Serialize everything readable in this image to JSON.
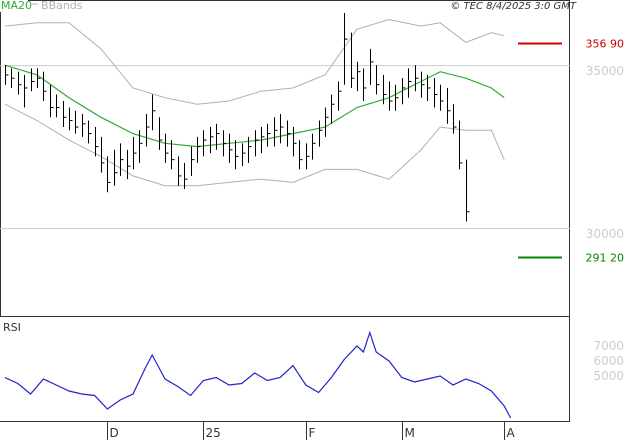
{
  "header": {
    "legend_ma": "MA20",
    "legend_bb": "BBands",
    "source": "© TEC 8/4/2025 3:0 GMT"
  },
  "colors": {
    "ma": "#33aa33",
    "bands": "#b0b0b0",
    "price": "#000000",
    "rsi": "#2222cc",
    "marker_high": "#cc0000",
    "marker_low": "#008800",
    "grid": "#cccccc",
    "axis": "#333333"
  },
  "chart_data": [
    {
      "type": "ohlc",
      "title": "",
      "ylim": [
        273,
        370
      ],
      "y_ticks": [
        {
          "value": 350,
          "label": "35000"
        },
        {
          "value": 300,
          "label": "30000"
        }
      ],
      "gridlines_y": [
        350,
        300
      ],
      "markers": [
        {
          "name": "high",
          "value": 356.9,
          "label": "356 90"
        },
        {
          "name": "low",
          "value": 291.2,
          "label": "291 20"
        }
      ],
      "x_ticks": [
        {
          "index": 16,
          "label": "D"
        },
        {
          "index": 31,
          "label": "25"
        },
        {
          "index": 47,
          "label": "F"
        },
        {
          "index": 62,
          "label": "M"
        },
        {
          "index": 78,
          "label": "A"
        }
      ],
      "bars": [
        {
          "h": 350,
          "l": 344,
          "c": 347
        },
        {
          "h": 349,
          "l": 343,
          "c": 346
        },
        {
          "h": 348,
          "l": 341,
          "c": 344
        },
        {
          "h": 347,
          "l": 337,
          "c": 343
        },
        {
          "h": 349,
          "l": 342,
          "c": 345
        },
        {
          "h": 349,
          "l": 343,
          "c": 346
        },
        {
          "h": 348,
          "l": 339,
          "c": 342
        },
        {
          "h": 344,
          "l": 334,
          "c": 337
        },
        {
          "h": 341,
          "l": 334,
          "c": 337
        },
        {
          "h": 339,
          "l": 331,
          "c": 334
        },
        {
          "h": 337,
          "l": 330,
          "c": 333
        },
        {
          "h": 336,
          "l": 329,
          "c": 331
        },
        {
          "h": 335,
          "l": 328,
          "c": 332
        },
        {
          "h": 333,
          "l": 326,
          "c": 329
        },
        {
          "h": 331,
          "l": 322,
          "c": 325
        },
        {
          "h": 328,
          "l": 317,
          "c": 320
        },
        {
          "h": 322,
          "l": 311,
          "c": 314
        },
        {
          "h": 324,
          "l": 313,
          "c": 317
        },
        {
          "h": 326,
          "l": 316,
          "c": 321
        },
        {
          "h": 324,
          "l": 315,
          "c": 319
        },
        {
          "h": 328,
          "l": 318,
          "c": 323
        },
        {
          "h": 330,
          "l": 320,
          "c": 326
        },
        {
          "h": 335,
          "l": 325,
          "c": 331
        },
        {
          "h": 341,
          "l": 330,
          "c": 336
        },
        {
          "h": 334,
          "l": 324,
          "c": 327
        },
        {
          "h": 329,
          "l": 320,
          "c": 323
        },
        {
          "h": 327,
          "l": 318,
          "c": 321
        },
        {
          "h": 322,
          "l": 313,
          "c": 316
        },
        {
          "h": 320,
          "l": 312,
          "c": 315
        },
        {
          "h": 325,
          "l": 316,
          "c": 321
        },
        {
          "h": 328,
          "l": 320,
          "c": 325
        },
        {
          "h": 330,
          "l": 322,
          "c": 327
        },
        {
          "h": 331,
          "l": 323,
          "c": 328
        },
        {
          "h": 332,
          "l": 324,
          "c": 329
        },
        {
          "h": 330,
          "l": 322,
          "c": 326
        },
        {
          "h": 329,
          "l": 320,
          "c": 324
        },
        {
          "h": 327,
          "l": 318,
          "c": 322
        },
        {
          "h": 326,
          "l": 319,
          "c": 323
        },
        {
          "h": 328,
          "l": 320,
          "c": 325
        },
        {
          "h": 330,
          "l": 322,
          "c": 327
        },
        {
          "h": 331,
          "l": 323,
          "c": 328
        },
        {
          "h": 332,
          "l": 325,
          "c": 329
        },
        {
          "h": 334,
          "l": 325,
          "c": 330
        },
        {
          "h": 335,
          "l": 326,
          "c": 331
        },
        {
          "h": 333,
          "l": 325,
          "c": 329
        },
        {
          "h": 331,
          "l": 322,
          "c": 326
        },
        {
          "h": 327,
          "l": 318,
          "c": 321
        },
        {
          "h": 326,
          "l": 318,
          "c": 322
        },
        {
          "h": 329,
          "l": 321,
          "c": 326
        },
        {
          "h": 333,
          "l": 325,
          "c": 330
        },
        {
          "h": 337,
          "l": 328,
          "c": 334
        },
        {
          "h": 341,
          "l": 332,
          "c": 338
        },
        {
          "h": 345,
          "l": 336,
          "c": 342
        },
        {
          "h": 366,
          "l": 344,
          "c": 358
        },
        {
          "h": 360,
          "l": 343,
          "c": 346
        },
        {
          "h": 351,
          "l": 342,
          "c": 348
        },
        {
          "h": 349,
          "l": 339,
          "c": 343
        },
        {
          "h": 355,
          "l": 344,
          "c": 351
        },
        {
          "h": 350,
          "l": 341,
          "c": 344
        },
        {
          "h": 347,
          "l": 338,
          "c": 341
        },
        {
          "h": 345,
          "l": 336,
          "c": 339
        },
        {
          "h": 344,
          "l": 336,
          "c": 340
        },
        {
          "h": 346,
          "l": 338,
          "c": 343
        },
        {
          "h": 349,
          "l": 340,
          "c": 345
        },
        {
          "h": 350,
          "l": 342,
          "c": 346
        },
        {
          "h": 348,
          "l": 340,
          "c": 344
        },
        {
          "h": 347,
          "l": 339,
          "c": 343
        },
        {
          "h": 346,
          "l": 337,
          "c": 341
        },
        {
          "h": 344,
          "l": 336,
          "c": 339
        },
        {
          "h": 343,
          "l": 332,
          "c": 336
        },
        {
          "h": 338,
          "l": 329,
          "c": 331
        },
        {
          "h": 333,
          "l": 318,
          "c": 320
        },
        {
          "h": 321,
          "l": 302,
          "c": 305
        }
      ],
      "ma20": [
        [
          0,
          350
        ],
        [
          5,
          347
        ],
        [
          10,
          340
        ],
        [
          15,
          334
        ],
        [
          20,
          329
        ],
        [
          25,
          326
        ],
        [
          30,
          325
        ],
        [
          35,
          326
        ],
        [
          40,
          327
        ],
        [
          45,
          329
        ],
        [
          50,
          331
        ],
        [
          55,
          337
        ],
        [
          60,
          340
        ],
        [
          65,
          345
        ],
        [
          68,
          348
        ],
        [
          72,
          346
        ],
        [
          76,
          343
        ],
        [
          78,
          340
        ]
      ],
      "bb_upper": [
        [
          0,
          362
        ],
        [
          5,
          363
        ],
        [
          10,
          363
        ],
        [
          15,
          355
        ],
        [
          20,
          343
        ],
        [
          25,
          340
        ],
        [
          30,
          338
        ],
        [
          35,
          339
        ],
        [
          40,
          342
        ],
        [
          45,
          343
        ],
        [
          50,
          347
        ],
        [
          55,
          361
        ],
        [
          60,
          364
        ],
        [
          65,
          362
        ],
        [
          68,
          363
        ],
        [
          72,
          357
        ],
        [
          76,
          360
        ],
        [
          78,
          359
        ]
      ],
      "bb_lower": [
        [
          0,
          338
        ],
        [
          5,
          333
        ],
        [
          10,
          327
        ],
        [
          15,
          322
        ],
        [
          20,
          316
        ],
        [
          25,
          313
        ],
        [
          30,
          313
        ],
        [
          35,
          314
        ],
        [
          40,
          315
        ],
        [
          45,
          314
        ],
        [
          50,
          318
        ],
        [
          55,
          318
        ],
        [
          60,
          315
        ],
        [
          65,
          324
        ],
        [
          68,
          331
        ],
        [
          72,
          330
        ],
        [
          76,
          330
        ],
        [
          78,
          321
        ]
      ]
    },
    {
      "type": "line",
      "title": "RSI",
      "ylim": [
        20,
        90
      ],
      "y_ticks": [
        {
          "value": 70,
          "label": "7000"
        },
        {
          "value": 60,
          "label": "6000"
        },
        {
          "value": 50,
          "label": "5000"
        }
      ],
      "series": [
        {
          "values": [
            [
              0,
              49
            ],
            [
              2,
              45
            ],
            [
              4,
              38
            ],
            [
              6,
              48
            ],
            [
              8,
              44
            ],
            [
              10,
              40
            ],
            [
              12,
              38
            ],
            [
              14,
              37
            ],
            [
              16,
              28
            ],
            [
              18,
              34
            ],
            [
              20,
              38
            ],
            [
              22,
              56
            ],
            [
              23,
              64
            ],
            [
              25,
              48
            ],
            [
              27,
              43
            ],
            [
              29,
              37
            ],
            [
              31,
              47
            ],
            [
              33,
              49
            ],
            [
              35,
              44
            ],
            [
              37,
              45
            ],
            [
              39,
              52
            ],
            [
              41,
              47
            ],
            [
              43,
              49
            ],
            [
              45,
              57
            ],
            [
              47,
              44
            ],
            [
              49,
              39
            ],
            [
              51,
              49
            ],
            [
              53,
              61
            ],
            [
              55,
              70
            ],
            [
              56,
              66
            ],
            [
              57,
              79
            ],
            [
              58,
              66
            ],
            [
              60,
              60
            ],
            [
              62,
              49
            ],
            [
              64,
              46
            ],
            [
              66,
              48
            ],
            [
              68,
              50
            ],
            [
              70,
              44
            ],
            [
              72,
              48
            ],
            [
              74,
              45
            ],
            [
              76,
              40
            ],
            [
              78,
              30
            ],
            [
              79,
              22
            ]
          ]
        }
      ]
    }
  ]
}
